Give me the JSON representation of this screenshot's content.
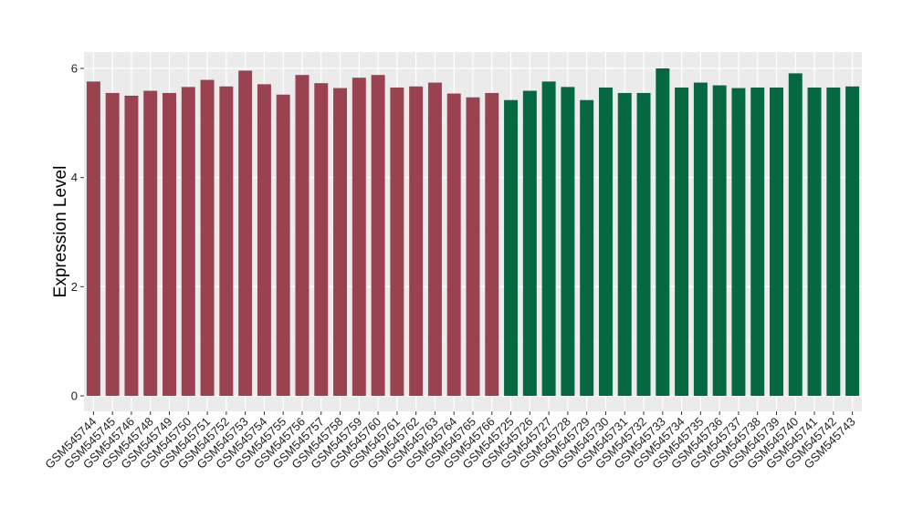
{
  "chart_data": {
    "type": "bar",
    "ylabel": "Expression Level",
    "xlabel": "",
    "title": "",
    "ylim": [
      0,
      6.2
    ],
    "yticks": [
      0,
      2,
      4,
      6
    ],
    "grid": true,
    "background_color": "#ebebeb",
    "grid_color": "#ffffff",
    "series": [
      {
        "color": "#9b4251",
        "categories": [
          "GSM545744",
          "GSM545745",
          "GSM545746",
          "GSM545748",
          "GSM545749",
          "GSM545750",
          "GSM545751",
          "GSM545752",
          "GSM545753",
          "GSM545754",
          "GSM545755",
          "GSM545756",
          "GSM545757",
          "GSM545758",
          "GSM545759",
          "GSM545760",
          "GSM545761",
          "GSM545762",
          "GSM545763",
          "GSM545764",
          "GSM545765",
          "GSM545766"
        ],
        "values": [
          5.76,
          5.55,
          5.5,
          5.59,
          5.55,
          5.66,
          5.79,
          5.67,
          5.96,
          5.71,
          5.52,
          5.88,
          5.73,
          5.64,
          5.83,
          5.88,
          5.65,
          5.67,
          5.74,
          5.54,
          5.47,
          5.55
        ]
      },
      {
        "color": "#046841",
        "categories": [
          "GSM545725",
          "GSM545726",
          "GSM545727",
          "GSM545728",
          "GSM545729",
          "GSM545730",
          "GSM545731",
          "GSM545732",
          "GSM545733",
          "GSM545734",
          "GSM545735",
          "GSM545736",
          "GSM545737",
          "GSM545738",
          "GSM545739",
          "GSM545740",
          "GSM545741",
          "GSM545742",
          "GSM545743"
        ],
        "values": [
          5.42,
          5.59,
          5.76,
          5.66,
          5.42,
          5.65,
          5.55,
          5.55,
          6.0,
          5.65,
          5.74,
          5.69,
          5.64,
          5.65,
          5.65,
          5.91,
          5.65,
          5.65,
          5.67
        ]
      }
    ]
  }
}
